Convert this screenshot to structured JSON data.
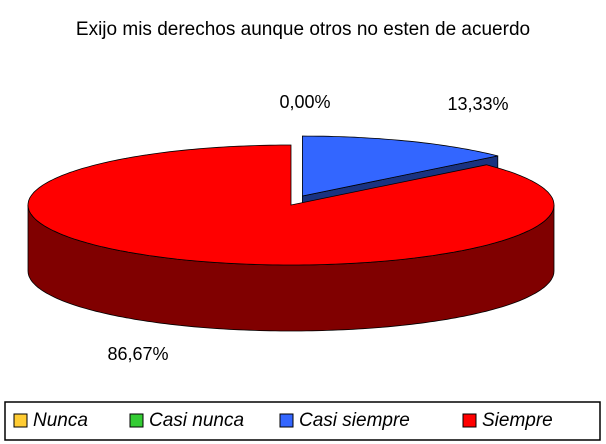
{
  "chart_data": {
    "type": "pie3d",
    "title": "Exijo mis derechos aunque otros no esten de acuerdo",
    "categories": [
      "Nunca",
      "Casi nunca",
      "Casi siempre",
      "Siempre"
    ],
    "values": [
      0,
      0,
      13.33,
      86.67
    ],
    "value_labels": [
      "0,00%",
      null,
      "13,33%",
      "86,67%"
    ],
    "colors": [
      "#ffcc33",
      "#33cc33",
      "#3366ff",
      "#ff0000"
    ],
    "legend": "bottom"
  }
}
